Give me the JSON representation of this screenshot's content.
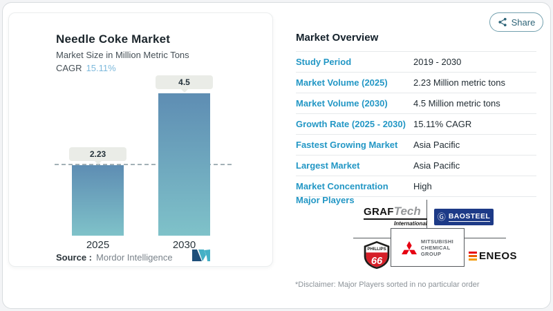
{
  "share": {
    "label": "Share"
  },
  "chart_data": {
    "type": "bar",
    "title": "Needle Coke Market",
    "subtitle": "Market Size in Million Metric Tons",
    "cagr_label": "CAGR",
    "cagr_value": "15.11%",
    "categories": [
      "2025",
      "2030"
    ],
    "values": [
      2.23,
      4.5
    ],
    "value_labels": [
      "2.23",
      "4.5"
    ],
    "ylim": [
      0,
      4.5
    ],
    "reference_line": 2.23,
    "grid": false,
    "legend": "none",
    "source_label": "Source :",
    "source_value": "Mordor Intelligence"
  },
  "overview": {
    "title": "Market Overview",
    "rows": [
      {
        "label": "Study Period",
        "value": "2019 - 2030"
      },
      {
        "label": "Market Volume (2025)",
        "value": "2.23 Million metric tons"
      },
      {
        "label": "Market Volume (2030)",
        "value": "4.5 Million metric tons"
      },
      {
        "label": "Growth Rate (2025 - 2030)",
        "value": "15.11% CAGR"
      },
      {
        "label": "Fastest Growing Market",
        "value": "Asia Pacific"
      },
      {
        "label": "Largest Market",
        "value": "Asia Pacific"
      },
      {
        "label": "Market Concentration",
        "value": "High"
      }
    ],
    "major_players_label": "Major Players",
    "logos": {
      "graftech": {
        "graf": "GRAF",
        "tech": "Tech",
        "sub": "International"
      },
      "baosteel": {
        "glyph": "Ⓖ",
        "name": "BAOSTEEL"
      },
      "phillips": {
        "name": "PHILLIPS",
        "num": "66"
      },
      "mitsubishi": {
        "l1": "MITSUBISHI",
        "l2": "CHEMICAL",
        "l3": "GROUP"
      },
      "eneos": {
        "name": "ENEOS"
      }
    },
    "disclaimer": "*Disclaimer: Major Players sorted in no particular order"
  },
  "colors": {
    "accent_blue": "#2397c5",
    "cagr_blue": "#7db9dc",
    "bar_top": "#5e8db3",
    "bar_bottom": "#7fc2c9",
    "baosteel_navy": "#1d3a87",
    "phillips_red": "#d61f28",
    "mitsubishi_red": "#e60012",
    "eneos_orange": "#f39800"
  }
}
